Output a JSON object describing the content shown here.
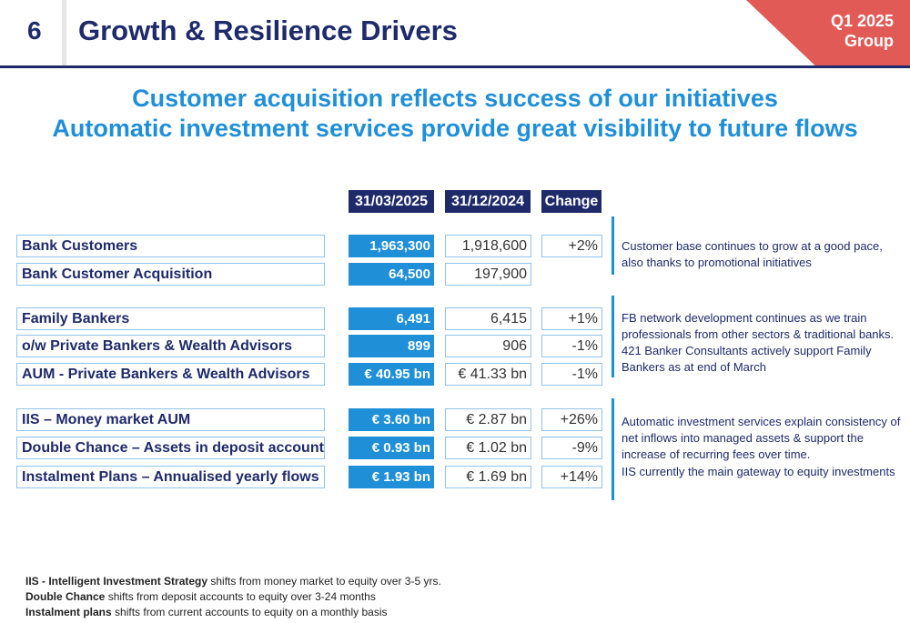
{
  "header": {
    "page_number": "6",
    "title": "Growth & Resilience Drivers",
    "period_line1": "Q1 2025",
    "period_line2": "Group"
  },
  "subtitle": {
    "line1": "Customer acquisition reflects success of our initiatives",
    "line2": "Automatic investment services provide great visibility to future flows"
  },
  "columns": {
    "current": "31/03/2025",
    "previous": "31/12/2024",
    "change": "Change"
  },
  "rows": [
    {
      "label": "Bank Customers",
      "current": "1,963,300",
      "previous": "1,918,600",
      "change": "+2%"
    },
    {
      "label": "Bank Customer Acquisition",
      "current": "64,500",
      "previous": "197,900",
      "change": ""
    },
    {
      "label": "Family Bankers",
      "current": "6,491",
      "previous": "6,415",
      "change": "+1%"
    },
    {
      "label": "o/w Private Bankers & Wealth Advisors",
      "current": "899",
      "previous": "906",
      "change": "-1%"
    },
    {
      "label": "AUM - Private Bankers & Wealth Advisors",
      "current": "€ 40.95 bn",
      "previous": "€ 41.33 bn",
      "change": "-1%"
    },
    {
      "label": "IIS – Money market AUM",
      "current": "€ 3.60 bn",
      "previous": "€ 2.87 bn",
      "change": "+26%"
    },
    {
      "label": "Double Chance – Assets in deposit accounts",
      "current": "€ 0.93 bn",
      "previous": "€ 1.02 bn",
      "change": "-9%"
    },
    {
      "label": "Instalment Plans – Annualised yearly flows",
      "current": "€ 1.93 bn",
      "previous": "€ 1.69 bn",
      "change": "+14%"
    }
  ],
  "comments": [
    "Customer base continues to grow at a good pace, also thanks to promotional initiatives",
    "FB network development continues as we train professionals from other sectors & traditional banks. 421 Banker Consultants actively support Family Bankers as at end of March",
    "Automatic investment services explain consistency of net inflows into managed assets & support the increase of recurring fees over time.",
    "IIS currently the main gateway to equity investments"
  ],
  "footnotes": [
    {
      "term": "IIS - Intelligent Investment Strategy",
      "text": " shifts from money market to equity over 3-5 yrs."
    },
    {
      "term": "Double Chance",
      "text": " shifts from deposit accounts to equity over 3-24 months"
    },
    {
      "term": "Instalment plans",
      "text": " shifts from current accounts to equity on a monthly basis"
    }
  ],
  "colors": {
    "navy": "#1f2a6b",
    "accent_blue": "#1f8fd8",
    "corner_red": "#e25a55"
  }
}
